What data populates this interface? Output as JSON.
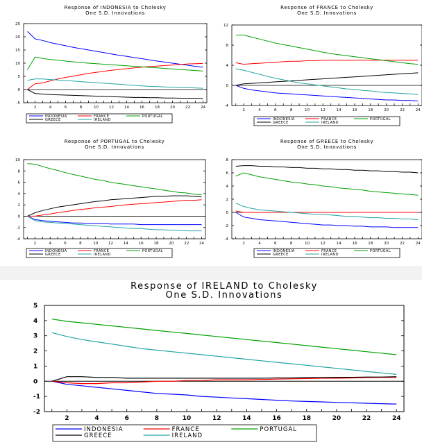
{
  "series_names": [
    "INDONESIA",
    "FRANCE",
    "PORTUGAL",
    "GREECE",
    "IRELAND"
  ],
  "colors": {
    "INDONESIA": "#0000ff",
    "FRANCE": "#ff0000",
    "PORTUGAL": "#00a000",
    "GREECE": "#000000",
    "IRELAND": "#21a3a3"
  },
  "chart_data": [
    {
      "type": "line",
      "title": "Response of INDONESIA to Cholesky",
      "subtitle": "One S.D. Innovations",
      "x": [
        1,
        2,
        3,
        4,
        5,
        6,
        7,
        8,
        9,
        10,
        11,
        12,
        13,
        14,
        15,
        16,
        17,
        18,
        19,
        20,
        21,
        22,
        23,
        24
      ],
      "xticks": [
        2,
        4,
        6,
        8,
        10,
        12,
        14,
        16,
        18,
        20,
        22,
        24
      ],
      "ylim": [
        -5,
        25
      ],
      "yticks": [
        -5,
        0,
        5,
        10,
        15,
        20,
        25
      ],
      "legend": [
        "INDONESIA",
        "FRANCE",
        "PORTUGAL",
        "GREECE",
        "IRELAND"
      ],
      "series": [
        {
          "name": "INDONESIA",
          "values": [
            22,
            19.2,
            18.6,
            17.8,
            17.2,
            16.6,
            16,
            15.5,
            15,
            14.5,
            14,
            13.5,
            13,
            12.6,
            12.1,
            11.7,
            11.2,
            10.8,
            10.4,
            10,
            9.6,
            9.2,
            8.8,
            8.5
          ]
        },
        {
          "name": "FRANCE",
          "values": [
            0,
            2.2,
            2.5,
            3.3,
            4,
            4.6,
            5.1,
            5.6,
            6.1,
            6.5,
            6.9,
            7.3,
            7.6,
            7.9,
            8.2,
            8.5,
            8.7,
            8.9,
            9.1,
            9.3,
            9.5,
            9.7,
            9.8,
            9.9
          ]
        },
        {
          "name": "PORTUGAL",
          "values": [
            7.5,
            12.3,
            11.8,
            11.4,
            11.1,
            10.8,
            10.5,
            10.2,
            10,
            9.8,
            9.6,
            9.4,
            9.2,
            9,
            8.8,
            8.6,
            8.4,
            8.2,
            8,
            7.8,
            7.6,
            7.4,
            7.2,
            7
          ]
        },
        {
          "name": "GREECE",
          "values": [
            0,
            -1.5,
            -1.7,
            -1.9,
            -2,
            -2.1,
            -2.2,
            -2.3,
            -2.4,
            -2.5,
            -2.6,
            -2.7,
            -2.8,
            -2.9,
            -3,
            -3,
            -3.1,
            -3.1,
            -3.2,
            -3.2,
            -3.3,
            -3.3,
            -3.3,
            -3.4
          ]
        },
        {
          "name": "IRELAND",
          "values": [
            3.5,
            4,
            4,
            3.8,
            3.6,
            3.4,
            3.2,
            3,
            2.8,
            2.6,
            2.4,
            2.2,
            2,
            1.8,
            1.6,
            1.4,
            1.2,
            1.1,
            1,
            0.9,
            0.8,
            0.7,
            0.6,
            0.5
          ]
        }
      ]
    },
    {
      "type": "line",
      "title": "Response of FRANCE to Cholesky",
      "subtitle": "One S.D. Innovations",
      "x": [
        1,
        2,
        3,
        4,
        5,
        6,
        7,
        8,
        9,
        10,
        11,
        12,
        13,
        14,
        15,
        16,
        17,
        18,
        19,
        20,
        21,
        22,
        23,
        24
      ],
      "xticks": [
        2,
        4,
        6,
        8,
        10,
        12,
        14,
        16,
        18,
        20,
        22,
        24
      ],
      "ylim": [
        -4,
        12
      ],
      "yticks": [
        -4,
        0,
        4,
        8,
        12
      ],
      "legend": [
        "INDONESIA",
        "FRANCE",
        "PORTUGAL",
        "GREECE",
        "IRELAND"
      ],
      "series": [
        {
          "name": "INDONESIA",
          "values": [
            0,
            -0.6,
            -0.9,
            -1.1,
            -1.3,
            -1.5,
            -1.6,
            -1.7,
            -1.8,
            -1.9,
            -2,
            -2.1,
            -2.2,
            -2.3,
            -2.4,
            -2.5,
            -2.6,
            -2.7,
            -2.8,
            -2.9,
            -2.9,
            -3,
            -3,
            -3.1
          ]
        },
        {
          "name": "FRANCE",
          "values": [
            4.5,
            4.2,
            4.3,
            4.4,
            4.5,
            4.6,
            4.7,
            4.8,
            4.8,
            4.9,
            4.9,
            5,
            5,
            5,
            5,
            5,
            5,
            5,
            5,
            5,
            5,
            5,
            5,
            5
          ]
        },
        {
          "name": "PORTUGAL",
          "values": [
            10,
            10,
            9.6,
            9.2,
            8.8,
            8.4,
            8.1,
            7.8,
            7.5,
            7.2,
            6.9,
            6.6,
            6.3,
            6.1,
            5.9,
            5.7,
            5.5,
            5.3,
            5.1,
            4.9,
            4.7,
            4.5,
            4.3,
            4.2
          ]
        },
        {
          "name": "GREECE",
          "values": [
            0,
            0.3,
            0.4,
            0.5,
            0.6,
            0.7,
            0.8,
            0.9,
            1,
            1.1,
            1.2,
            1.3,
            1.4,
            1.5,
            1.6,
            1.7,
            1.8,
            1.9,
            2,
            2.1,
            2.2,
            2.3,
            2.4,
            2.5
          ]
        },
        {
          "name": "IRELAND",
          "values": [
            3.3,
            3,
            2.6,
            2.2,
            1.8,
            1.4,
            1.1,
            0.8,
            0.5,
            0.3,
            0.1,
            -0.1,
            -0.3,
            -0.5,
            -0.7,
            -0.8,
            -1,
            -1.1,
            -1.3,
            -1.4,
            -1.5,
            -1.6,
            -1.7,
            -1.8
          ]
        }
      ]
    },
    {
      "type": "line",
      "title": "Response of PORTUGAL to Cholesky",
      "subtitle": "One S.D. Innovations",
      "x": [
        1,
        2,
        3,
        4,
        5,
        6,
        7,
        8,
        9,
        10,
        11,
        12,
        13,
        14,
        15,
        16,
        17,
        18,
        19,
        20,
        21,
        22,
        23,
        24
      ],
      "xticks": [
        2,
        4,
        6,
        8,
        10,
        12,
        14,
        16,
        18,
        20,
        22,
        24
      ],
      "ylim": [
        -4,
        10
      ],
      "yticks": [
        -4,
        -2,
        0,
        2,
        4,
        6,
        8,
        10
      ],
      "legend": [
        "INDONESIA",
        "FRANCE",
        "PORTUGAL",
        "GREECE",
        "IRELAND"
      ],
      "series": [
        {
          "name": "INDONESIA",
          "values": [
            0,
            -0.6,
            -0.8,
            -0.9,
            -1,
            -1.1,
            -1.2,
            -1.2,
            -1.3,
            -1.3,
            -1.3,
            -1.4,
            -1.4,
            -1.4,
            -1.4,
            -1.5,
            -1.5,
            -1.5,
            -1.5,
            -1.5,
            -1.5,
            -1.5,
            -1.5,
            -1.5
          ]
        },
        {
          "name": "FRANCE",
          "values": [
            0,
            0,
            0.2,
            0.4,
            0.6,
            0.8,
            1,
            1.2,
            1.3,
            1.5,
            1.6,
            1.7,
            1.9,
            2,
            2.1,
            2.2,
            2.3,
            2.4,
            2.5,
            2.6,
            2.7,
            2.8,
            2.8,
            2.9
          ]
        },
        {
          "name": "PORTUGAL",
          "values": [
            9.3,
            9.2,
            8.8,
            8.4,
            8.1,
            7.7,
            7.4,
            7.1,
            6.8,
            6.5,
            6.3,
            6,
            5.8,
            5.6,
            5.4,
            5.2,
            5,
            4.8,
            4.6,
            4.4,
            4.2,
            4.1,
            3.9,
            3.8
          ]
        },
        {
          "name": "GREECE",
          "values": [
            0,
            0.6,
            1,
            1.3,
            1.6,
            1.8,
            2,
            2.2,
            2.4,
            2.6,
            2.7,
            2.9,
            3,
            3.1,
            3.2,
            3.3,
            3.4,
            3.5,
            3.5,
            3.6,
            3.6,
            3.6,
            3.5,
            3.4
          ]
        },
        {
          "name": "IRELAND",
          "values": [
            0,
            -0.8,
            -1,
            -1.1,
            -1.2,
            -1.3,
            -1.4,
            -1.5,
            -1.6,
            -1.7,
            -1.8,
            -1.9,
            -2,
            -2.1,
            -2.2,
            -2.2,
            -2.3,
            -2.4,
            -2.4,
            -2.5,
            -2.5,
            -2.6,
            -2.6,
            -2.6
          ]
        }
      ]
    },
    {
      "type": "line",
      "title": "Response of GREECE to Cholesky",
      "subtitle": "One S.D. Innovations",
      "x": [
        1,
        2,
        3,
        4,
        5,
        6,
        7,
        8,
        9,
        10,
        11,
        12,
        13,
        14,
        15,
        16,
        17,
        18,
        19,
        20,
        21,
        22,
        23,
        24
      ],
      "xticks": [
        2,
        4,
        6,
        8,
        10,
        12,
        14,
        16,
        18,
        20,
        22,
        24
      ],
      "ylim": [
        -4,
        8
      ],
      "yticks": [
        -4,
        -2,
        0,
        2,
        4,
        6,
        8
      ],
      "legend": [
        "INDONESIA",
        "FRANCE",
        "PORTUGAL",
        "GREECE",
        "IRELAND"
      ],
      "series": [
        {
          "name": "INDONESIA",
          "values": [
            0,
            -0.7,
            -0.9,
            -1.1,
            -1.2,
            -1.3,
            -1.4,
            -1.5,
            -1.6,
            -1.7,
            -1.8,
            -1.9,
            -1.9,
            -2,
            -2,
            -2.1,
            -2.1,
            -2.2,
            -2.2,
            -2.2,
            -2.3,
            -2.3,
            -2.3,
            -2.3
          ]
        },
        {
          "name": "FRANCE",
          "values": [
            0.2,
            0,
            0,
            0,
            0,
            0,
            0,
            0,
            0,
            0,
            0,
            0,
            0,
            0,
            0,
            0,
            0,
            0,
            0,
            0,
            0,
            0,
            0,
            0
          ]
        },
        {
          "name": "PORTUGAL",
          "values": [
            5.5,
            6,
            5.7,
            5.4,
            5.2,
            5,
            4.8,
            4.6,
            4.5,
            4.3,
            4.2,
            4,
            3.9,
            3.7,
            3.6,
            3.5,
            3.4,
            3.2,
            3.1,
            3,
            2.9,
            2.8,
            2.7,
            2.6
          ]
        },
        {
          "name": "GREECE",
          "values": [
            7,
            7.1,
            7.1,
            7,
            7,
            6.9,
            6.9,
            6.8,
            6.8,
            6.7,
            6.7,
            6.6,
            6.6,
            6.5,
            6.5,
            6.4,
            6.4,
            6.3,
            6.3,
            6.2,
            6.2,
            6.1,
            6.1,
            6
          ]
        },
        {
          "name": "IRELAND",
          "values": [
            1.4,
            0.9,
            0.6,
            0.4,
            0.3,
            0.2,
            0.1,
            0,
            -0.1,
            -0.2,
            -0.3,
            -0.3,
            -0.4,
            -0.5,
            -0.6,
            -0.6,
            -0.7,
            -0.8,
            -0.8,
            -0.9,
            -0.9,
            -1,
            -1,
            -1.1
          ]
        }
      ]
    },
    {
      "type": "line",
      "title": "Response of IRELAND to Cholesky",
      "subtitle": "One S.D. Innovations",
      "x": [
        1,
        2,
        3,
        4,
        5,
        6,
        7,
        8,
        9,
        10,
        11,
        12,
        13,
        14,
        15,
        16,
        17,
        18,
        19,
        20,
        21,
        22,
        23,
        24
      ],
      "xticks": [
        2,
        4,
        6,
        8,
        10,
        12,
        14,
        16,
        18,
        20,
        22,
        24
      ],
      "ylim": [
        -2,
        5
      ],
      "yticks": [
        -2,
        -1,
        0,
        1,
        2,
        3,
        4,
        5
      ],
      "legend": [
        "INDONESIA",
        "FRANCE",
        "PORTUGAL",
        "GREECE",
        "IRELAND"
      ],
      "series": [
        {
          "name": "INDONESIA",
          "values": [
            0,
            -0.2,
            -0.3,
            -0.4,
            -0.5,
            -0.6,
            -0.7,
            -0.8,
            -0.85,
            -0.9,
            -1,
            -1.05,
            -1.1,
            -1.15,
            -1.2,
            -1.25,
            -1.3,
            -1.33,
            -1.36,
            -1.39,
            -1.42,
            -1.45,
            -1.48,
            -1.5
          ]
        },
        {
          "name": "FRANCE",
          "values": [
            0,
            -0.1,
            -0.15,
            -0.15,
            -0.1,
            -0.1,
            -0.05,
            0,
            0,
            0.05,
            0.05,
            0.1,
            0.1,
            0.1,
            0.12,
            0.14,
            0.16,
            0.18,
            0.2,
            0.2,
            0.22,
            0.24,
            0.25,
            0.25
          ]
        },
        {
          "name": "PORTUGAL",
          "values": [
            4.1,
            3.95,
            3.85,
            3.75,
            3.65,
            3.55,
            3.45,
            3.35,
            3.25,
            3.15,
            3.05,
            2.95,
            2.85,
            2.75,
            2.65,
            2.55,
            2.45,
            2.35,
            2.25,
            2.15,
            2.05,
            1.95,
            1.85,
            1.75
          ]
        },
        {
          "name": "GREECE",
          "values": [
            0,
            0.3,
            0.3,
            0.25,
            0.25,
            0.2,
            0.2,
            0.2,
            0.2,
            0.2,
            0.2,
            0.2,
            0.2,
            0.2,
            0.2,
            0.22,
            0.22,
            0.24,
            0.24,
            0.26,
            0.26,
            0.28,
            0.28,
            0.3
          ]
        },
        {
          "name": "IRELAND",
          "values": [
            3.2,
            2.95,
            2.75,
            2.6,
            2.45,
            2.3,
            2.15,
            2.05,
            1.95,
            1.85,
            1.75,
            1.65,
            1.55,
            1.45,
            1.35,
            1.25,
            1.15,
            1.05,
            0.95,
            0.85,
            0.75,
            0.65,
            0.55,
            0.45
          ]
        }
      ]
    }
  ]
}
